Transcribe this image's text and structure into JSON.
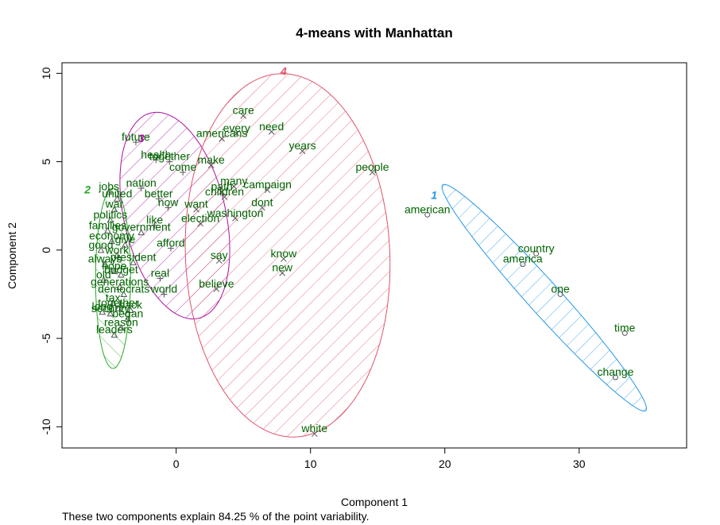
{
  "chart_data": {
    "type": "scatter",
    "title": "4-means with Manhattan",
    "xlabel": "Component 1",
    "ylabel": "Component 2",
    "subtitle": "These two components explain 84.25 % of the point variability.",
    "xlim": [
      -8.5,
      38.0
    ],
    "ylim": [
      -11.2,
      10.6
    ],
    "xticks": [
      0,
      10,
      20,
      30
    ],
    "yticks": [
      -10,
      -5,
      0,
      5,
      10
    ],
    "colors": {
      "words": "#006400",
      "points": "#555555",
      "cluster1": "#2297E6",
      "cluster2": "#28A828",
      "cluster3": "#AA10A0",
      "cluster4": "#DF536B"
    },
    "clusters": [
      {
        "label": "1",
        "cx": 27.4,
        "cy": -2.7,
        "rx": 9.9,
        "ry": 1.05,
        "angle_deg": -40,
        "hatch_angle": 45,
        "color": "cluster1",
        "label_x": 19.2,
        "label_y": 2.9
      },
      {
        "label": "2",
        "cx": -4.7,
        "cy": -1.6,
        "rx": 1.3,
        "ry": 5.1,
        "angle_deg": 0,
        "hatch_angle": 135,
        "color": "cluster2",
        "label_x": -6.6,
        "label_y": 3.2
      },
      {
        "label": "3",
        "cx": -0.1,
        "cy": 1.95,
        "rx": 3.7,
        "ry": 6.1,
        "angle_deg": 21,
        "hatch_angle": 45,
        "color": "cluster3",
        "label_x": -2.6,
        "label_y": 6.1
      },
      {
        "label": "4",
        "cx": 8.3,
        "cy": -0.3,
        "rx": 7.6,
        "ry": 10.3,
        "angle_deg": 5,
        "hatch_angle": 45,
        "color": "cluster4",
        "label_x": 8.0,
        "label_y": 9.9
      }
    ],
    "points": [
      {
        "label": "care",
        "x": 5.0,
        "y": 7.6,
        "cluster": 4
      },
      {
        "label": "need",
        "x": 7.1,
        "y": 6.7,
        "cluster": 4
      },
      {
        "label": "every",
        "x": 4.5,
        "y": 6.6,
        "cluster": 4
      },
      {
        "label": "americans",
        "x": 3.4,
        "y": 6.3,
        "cluster": 4
      },
      {
        "label": "years",
        "x": 9.4,
        "y": 5.6,
        "cluster": 4
      },
      {
        "label": "people",
        "x": 14.6,
        "y": 4.4,
        "cluster": 4
      },
      {
        "label": "make",
        "x": 2.6,
        "y": 4.8,
        "cluster": 4
      },
      {
        "label": "many",
        "x": 4.3,
        "y": 3.6,
        "cluster": 4
      },
      {
        "label": "path",
        "x": 3.4,
        "y": 3.3,
        "cluster": 4
      },
      {
        "label": "campaign",
        "x": 6.8,
        "y": 3.4,
        "cluster": 4
      },
      {
        "label": "children",
        "x": 3.6,
        "y": 3.0,
        "cluster": 4
      },
      {
        "label": "dont",
        "x": 6.4,
        "y": 2.4,
        "cluster": 4
      },
      {
        "label": "want",
        "x": 1.5,
        "y": 2.3,
        "cluster": 4
      },
      {
        "label": "washington",
        "x": 4.4,
        "y": 1.8,
        "cluster": 4
      },
      {
        "label": "election",
        "x": 1.8,
        "y": 1.5,
        "cluster": 4
      },
      {
        "label": "say",
        "x": 3.2,
        "y": -0.6,
        "cluster": 4
      },
      {
        "label": "know",
        "x": 8.0,
        "y": -0.5,
        "cluster": 4
      },
      {
        "label": "new",
        "x": 7.9,
        "y": -1.3,
        "cluster": 4
      },
      {
        "label": "believe",
        "x": 3.0,
        "y": -2.2,
        "cluster": 4
      },
      {
        "label": "white",
        "x": 10.3,
        "y": -10.4,
        "cluster": 4
      },
      {
        "label": "american",
        "x": 18.7,
        "y": 2.0,
        "cluster": 1
      },
      {
        "label": "country",
        "x": 26.8,
        "y": -0.2,
        "cluster": 1
      },
      {
        "label": "america",
        "x": 25.8,
        "y": -0.8,
        "cluster": 1
      },
      {
        "label": "one",
        "x": 28.6,
        "y": -2.5,
        "cluster": 1
      },
      {
        "label": "time",
        "x": 33.4,
        "y": -4.7,
        "cluster": 1
      },
      {
        "label": "change",
        "x": 32.7,
        "y": -7.2,
        "cluster": 1
      },
      {
        "label": "future",
        "x": -3.0,
        "y": 6.1,
        "cluster": 3
      },
      {
        "label": "health",
        "x": -1.5,
        "y": 5.1,
        "cluster": 3
      },
      {
        "label": "together",
        "x": -0.5,
        "y": 5.0,
        "cluster": 3
      },
      {
        "label": "come",
        "x": 0.5,
        "y": 4.4,
        "cluster": 3
      },
      {
        "label": "nation",
        "x": -2.6,
        "y": 3.5,
        "cluster": 3
      },
      {
        "label": "better",
        "x": -1.3,
        "y": 2.9,
        "cluster": 3
      },
      {
        "label": "now",
        "x": -0.6,
        "y": 2.4,
        "cluster": 3
      },
      {
        "label": "like",
        "x": -1.6,
        "y": 1.4,
        "cluster": 3
      },
      {
        "label": "afford",
        "x": -0.4,
        "y": 0.1,
        "cluster": 3
      },
      {
        "label": "real",
        "x": -1.2,
        "y": -1.6,
        "cluster": 3
      },
      {
        "label": "world",
        "x": -0.9,
        "y": -2.5,
        "cluster": 3
      },
      {
        "label": "jobs",
        "x": -5.0,
        "y": 3.3,
        "cluster": 2
      },
      {
        "label": "united",
        "x": -4.4,
        "y": 2.9,
        "cluster": 2
      },
      {
        "label": "war",
        "x": -4.6,
        "y": 2.3,
        "cluster": 2
      },
      {
        "label": "politics",
        "x": -4.9,
        "y": 1.7,
        "cluster": 2
      },
      {
        "label": "families",
        "x": -5.1,
        "y": 1.1,
        "cluster": 2
      },
      {
        "label": "government",
        "x": -2.6,
        "y": 1.0,
        "cluster": 2
      },
      {
        "label": "economy",
        "x": -4.8,
        "y": 0.5,
        "cluster": 2
      },
      {
        "label": "give",
        "x": -3.8,
        "y": 0.3,
        "cluster": 2
      },
      {
        "label": "good",
        "x": -5.6,
        "y": 0.0,
        "cluster": 2
      },
      {
        "label": "work",
        "x": -4.4,
        "y": -0.3,
        "cluster": 2
      },
      {
        "label": "president",
        "x": -3.2,
        "y": -0.7,
        "cluster": 2
      },
      {
        "label": "always",
        "x": -5.3,
        "y": -0.8,
        "cluster": 2
      },
      {
        "label": "hope",
        "x": -4.6,
        "y": -1.2,
        "cluster": 2
      },
      {
        "label": "budget",
        "x": -4.1,
        "y": -1.4,
        "cluster": 2
      },
      {
        "label": "old",
        "x": -5.4,
        "y": -1.7,
        "cluster": 2
      },
      {
        "label": "generations",
        "x": -4.2,
        "y": -2.1,
        "cluster": 2
      },
      {
        "label": "democrats",
        "x": -3.9,
        "y": -2.5,
        "cluster": 2
      },
      {
        "label": "tax",
        "x": -4.7,
        "y": -3.0,
        "cluster": 2
      },
      {
        "label": "together",
        "x": -4.3,
        "y": -3.3,
        "cluster": 2
      },
      {
        "label": "back",
        "x": -3.4,
        "y": -3.4,
        "cluster": 2
      },
      {
        "label": "long",
        "x": -5.5,
        "y": -3.5,
        "cluster": 2
      },
      {
        "label": "security",
        "x": -4.9,
        "y": -3.6,
        "cluster": 2
      },
      {
        "label": "began",
        "x": -3.6,
        "y": -3.9,
        "cluster": 2
      },
      {
        "label": "reason",
        "x": -4.1,
        "y": -4.4,
        "cluster": 2
      },
      {
        "label": "leaders",
        "x": -4.6,
        "y": -4.8,
        "cluster": 2
      }
    ]
  }
}
